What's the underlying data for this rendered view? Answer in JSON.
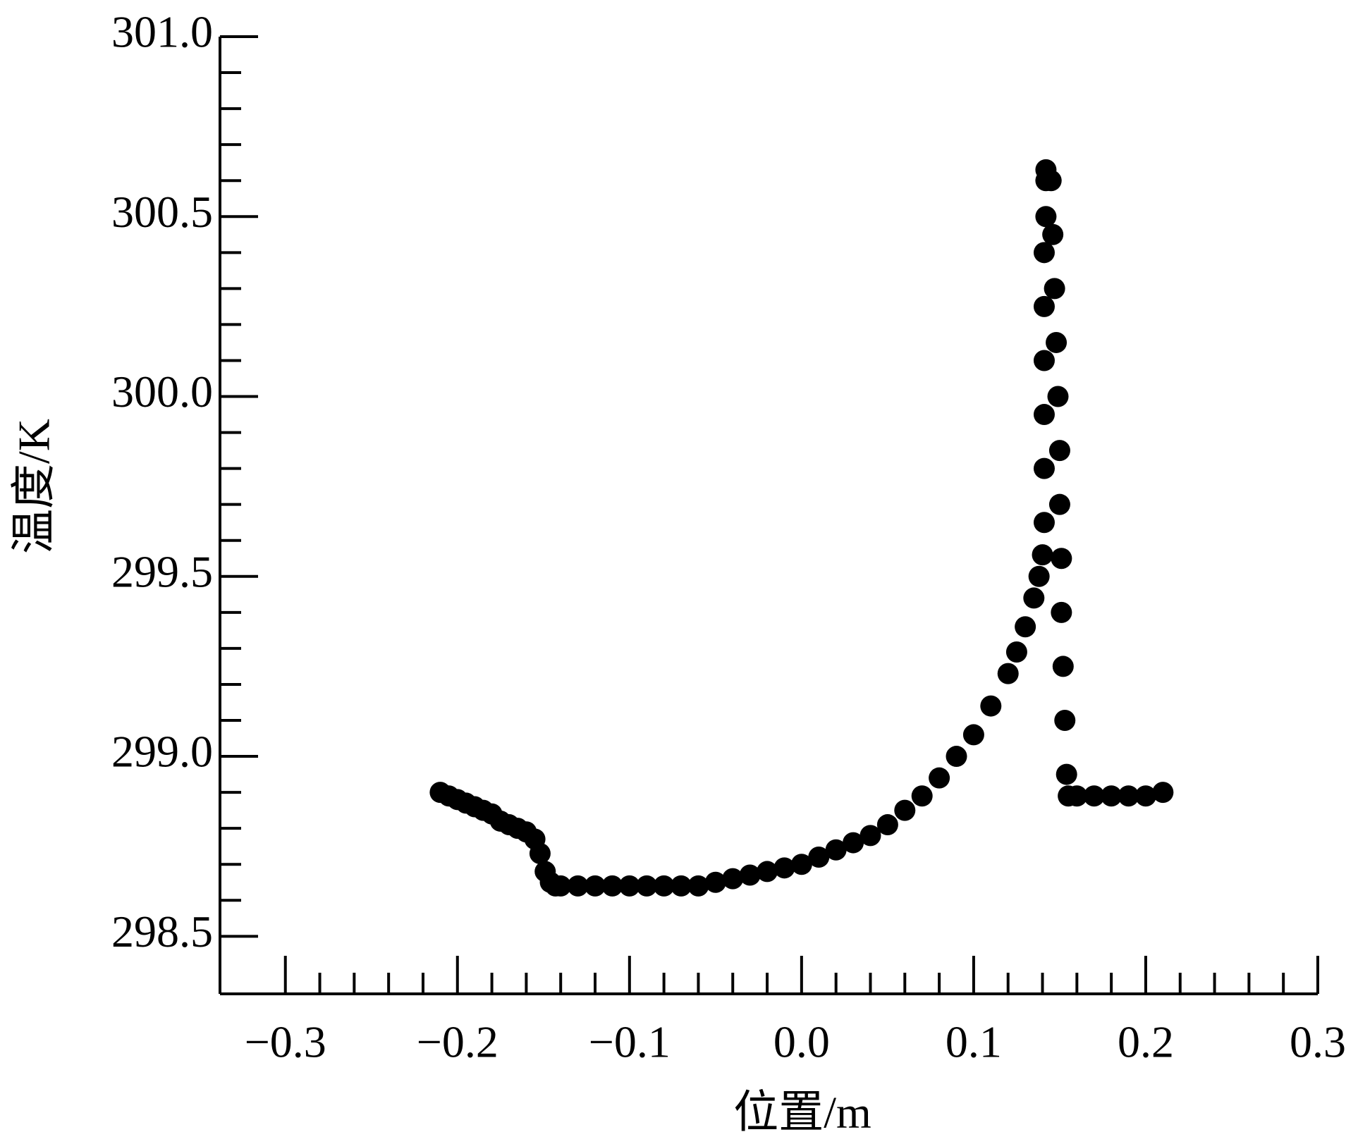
{
  "chart_data": {
    "type": "scatter",
    "xlabel": "位置/m",
    "ylabel": "温度/K",
    "color": "#000000",
    "x": [
      -0.21,
      -0.205,
      -0.2,
      -0.195,
      -0.19,
      -0.185,
      -0.18,
      -0.175,
      -0.17,
      -0.165,
      -0.16,
      -0.155,
      -0.152,
      -0.149,
      -0.146,
      -0.143,
      -0.14,
      -0.13,
      -0.12,
      -0.11,
      -0.1,
      -0.09,
      -0.08,
      -0.07,
      -0.06,
      -0.05,
      -0.04,
      -0.03,
      -0.02,
      -0.01,
      0.0,
      0.01,
      0.02,
      0.03,
      0.04,
      0.05,
      0.06,
      0.07,
      0.08,
      0.09,
      0.1,
      0.11,
      0.12,
      0.125,
      0.13,
      0.135,
      0.138,
      0.14,
      0.141,
      0.141,
      0.141,
      0.141,
      0.141,
      0.141,
      0.142,
      0.142,
      0.142,
      0.145,
      0.146,
      0.147,
      0.148,
      0.149,
      0.15,
      0.15,
      0.151,
      0.151,
      0.152,
      0.153,
      0.154,
      0.155,
      0.16,
      0.17,
      0.18,
      0.19,
      0.2,
      0.21
    ],
    "y": [
      298.9,
      298.89,
      298.88,
      298.87,
      298.86,
      298.85,
      298.84,
      298.82,
      298.81,
      298.8,
      298.79,
      298.77,
      298.73,
      298.68,
      298.65,
      298.64,
      298.64,
      298.64,
      298.64,
      298.64,
      298.64,
      298.64,
      298.64,
      298.64,
      298.64,
      298.65,
      298.66,
      298.67,
      298.68,
      298.69,
      298.7,
      298.72,
      298.74,
      298.76,
      298.78,
      298.81,
      298.85,
      298.89,
      298.94,
      299.0,
      299.06,
      299.14,
      299.23,
      299.29,
      299.36,
      299.44,
      299.5,
      299.56,
      299.65,
      299.8,
      299.95,
      300.1,
      300.25,
      300.4,
      300.5,
      300.6,
      300.63,
      300.6,
      300.45,
      300.3,
      300.15,
      300.0,
      299.85,
      299.7,
      299.55,
      299.4,
      299.25,
      299.1,
      298.95,
      298.89,
      298.89,
      298.89,
      298.89,
      298.89,
      298.89,
      298.9
    ],
    "xlim": [
      -0.338,
      0.3
    ],
    "ylim": [
      298.34,
      301.0
    ],
    "xticks": [
      {
        "value": -0.3,
        "label": "−0.3"
      },
      {
        "value": -0.2,
        "label": "−0.2"
      },
      {
        "value": -0.1,
        "label": "−0.1"
      },
      {
        "value": 0,
        "label": "0.0"
      },
      0.1,
      0.2,
      0.3
    ],
    "yticks": [
      298.5,
      {
        "value": 299,
        "label": "299.0"
      },
      299.5,
      {
        "value": 300,
        "label": "300.0"
      },
      300.5,
      {
        "value": 301,
        "label": "301.0"
      }
    ],
    "minor_xticks": [
      -0.28,
      -0.26,
      -0.24,
      -0.22,
      -0.18,
      -0.16,
      -0.14,
      -0.12,
      -0.08,
      -0.06,
      -0.04,
      -0.02,
      0.02,
      0.04,
      0.06,
      0.08,
      0.12,
      0.14,
      0.16,
      0.18,
      0.22,
      0.24,
      0.26,
      0.28
    ],
    "minor_yticks": [
      298.6,
      298.7,
      298.8,
      298.9,
      299.1,
      299.2,
      299.3,
      299.4,
      299.6,
      299.7,
      299.8,
      299.9,
      300.1,
      300.2,
      300.3,
      300.4,
      300.6,
      300.7,
      300.8,
      300.9
    ]
  }
}
